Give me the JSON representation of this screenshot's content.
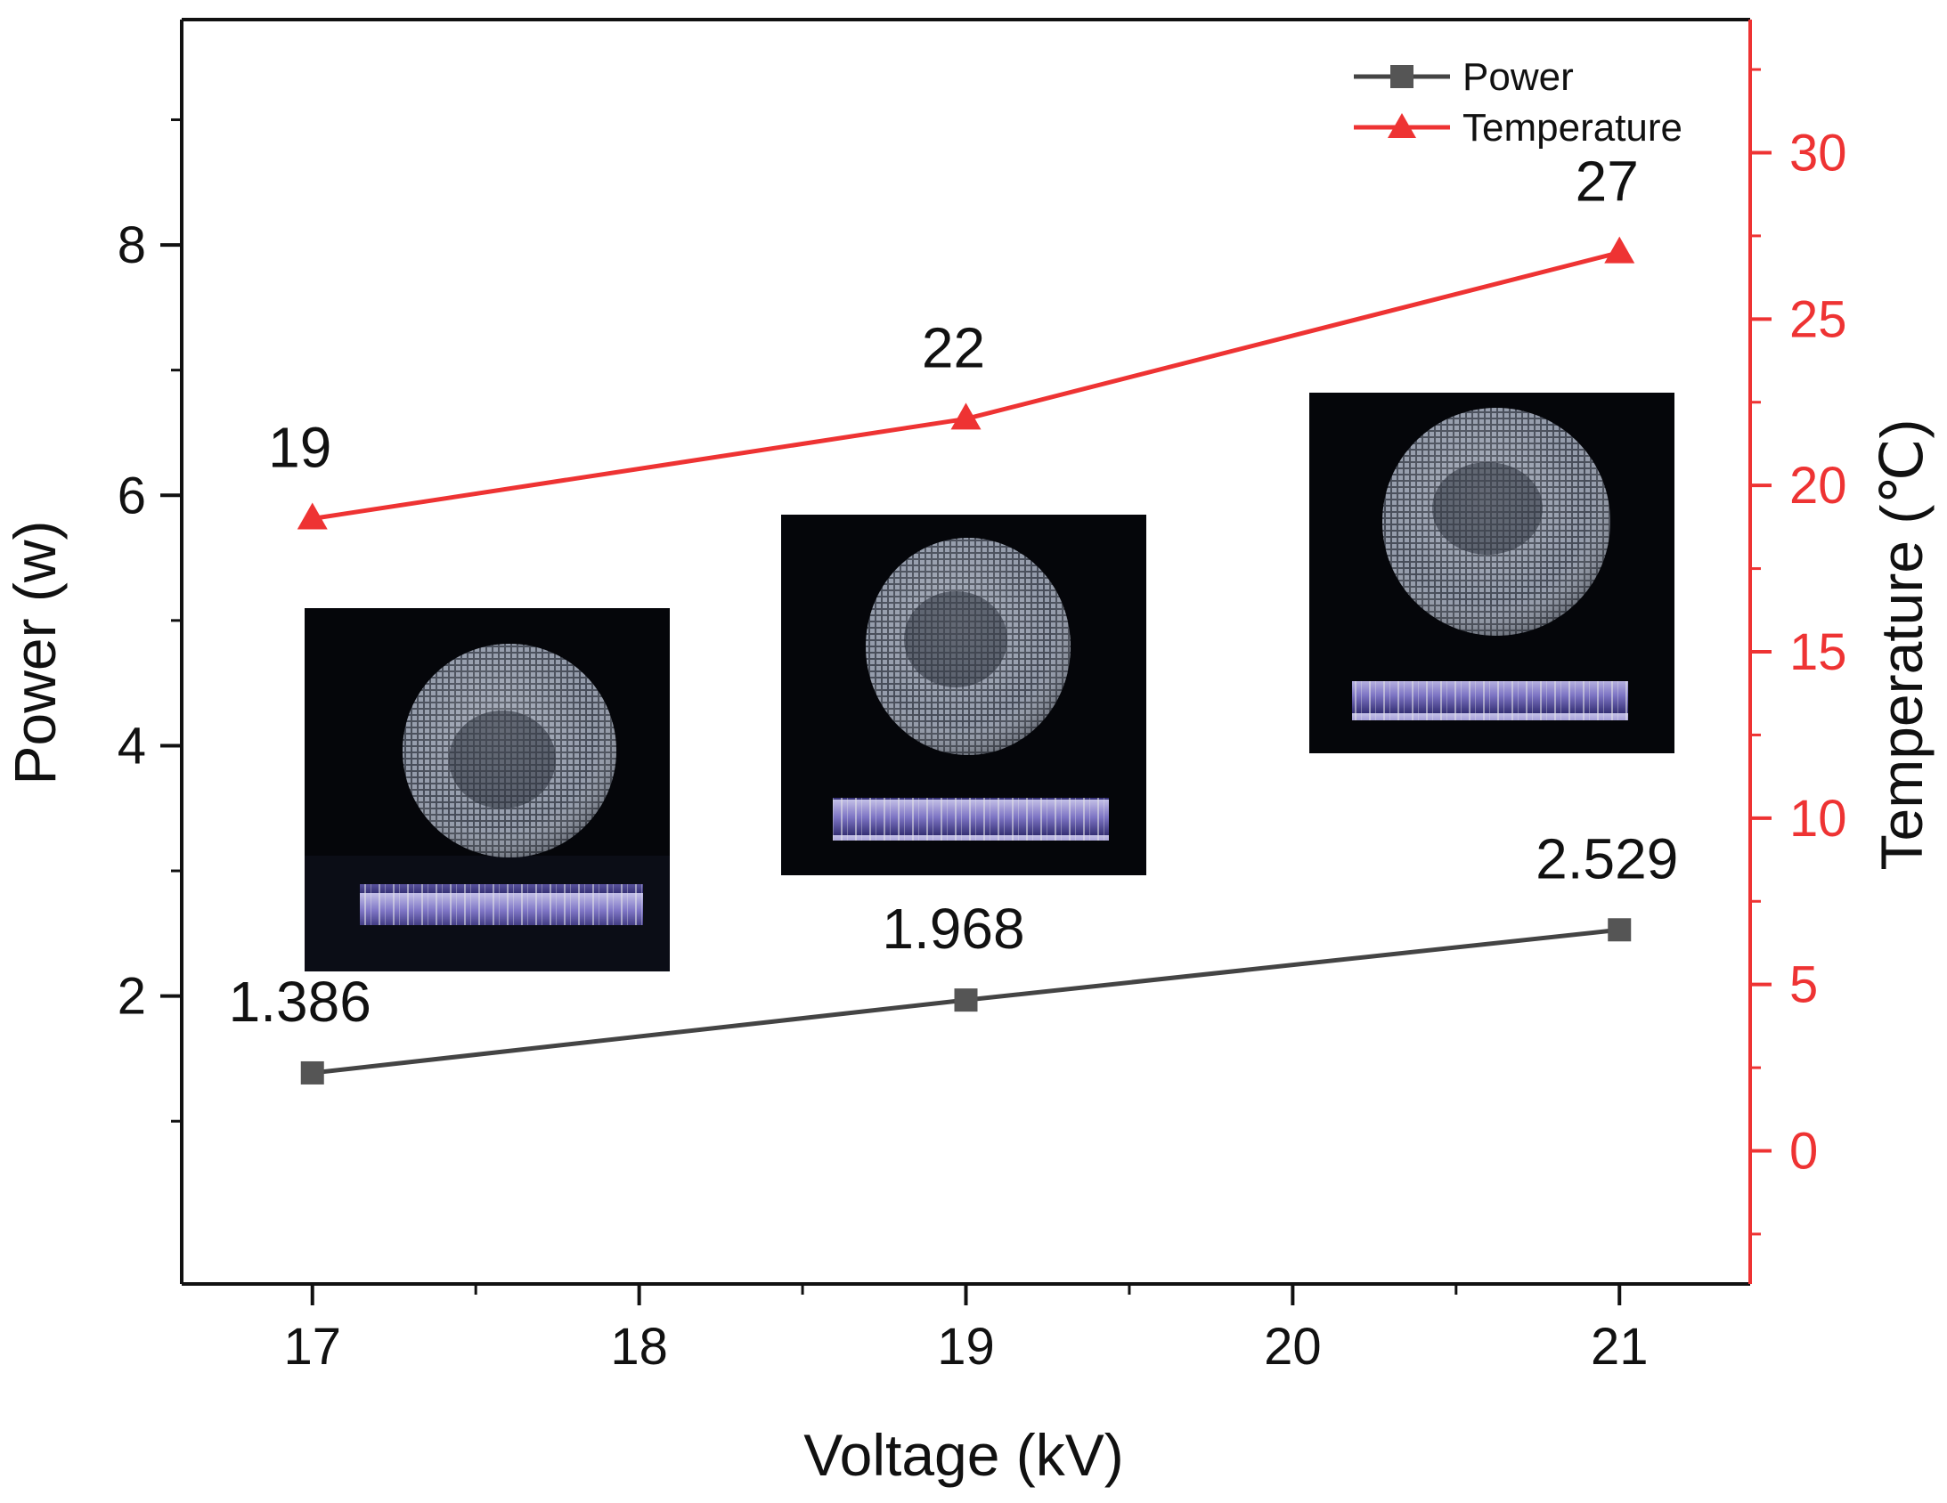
{
  "chart_data": {
    "type": "line",
    "x": [
      17,
      19,
      21
    ],
    "xlabel": "Voltage (kV)",
    "ylabel": "Power (w)",
    "ylabel_right": "Temperature (℃)",
    "xlim": [
      16.6,
      21.4
    ],
    "ylim": [
      -0.3,
      9.8
    ],
    "ylim_right": [
      -4,
      34
    ],
    "xticks": [
      17,
      18,
      19,
      20,
      21
    ],
    "yticks": [
      2,
      4,
      6,
      8
    ],
    "yticks_right": [
      0,
      5,
      10,
      15,
      20,
      25,
      30
    ],
    "grid": false,
    "legend_position": "top-right",
    "series": [
      {
        "name": "Power",
        "axis": "left",
        "values": [
          1.386,
          1.968,
          2.529
        ],
        "labels": [
          "1.386",
          "1.968",
          "2.529"
        ],
        "color": "#444444",
        "marker": "square"
      },
      {
        "name": "Temperature",
        "axis": "right",
        "values": [
          19,
          22,
          27
        ],
        "labels": [
          "19",
          "22",
          "27"
        ],
        "color": "#ee3333",
        "marker": "triangle"
      }
    ],
    "right_axis_color": "#ee3333",
    "inset_images": [
      {
        "name": "discharge-photo-17kv",
        "x": 17
      },
      {
        "name": "discharge-photo-19kv",
        "x": 19
      },
      {
        "name": "discharge-photo-21kv",
        "x": 21
      }
    ]
  }
}
